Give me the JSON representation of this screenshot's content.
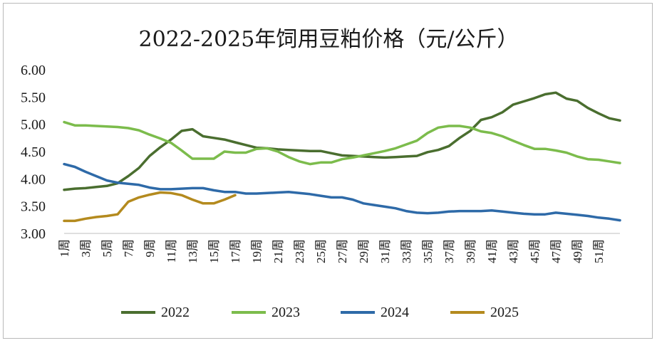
{
  "chart_data": {
    "type": "line",
    "title": "2022-2025年饲用豆粕价格（元/公斤）",
    "ylim": [
      3.0,
      6.0
    ],
    "yticks": [
      "6.00",
      "5.50",
      "5.00",
      "4.50",
      "4.00",
      "3.50",
      "3.00"
    ],
    "x_labels": [
      "1周",
      "3周",
      "5周",
      "7周",
      "9周",
      "11周",
      "13周",
      "15周",
      "17周",
      "19周",
      "21周",
      "23周",
      "25周",
      "27周",
      "29周",
      "31周",
      "33周",
      "35周",
      "37周",
      "39周",
      "41周",
      "43周",
      "45周",
      "47周",
      "49周",
      "51周"
    ],
    "legend_position": "bottom",
    "grid": false,
    "series": [
      {
        "name": "2022",
        "color": "#4a6e2f",
        "values": [
          3.8,
          3.82,
          3.83,
          3.85,
          3.87,
          3.92,
          4.05,
          4.2,
          4.42,
          4.58,
          4.72,
          4.88,
          4.91,
          4.78,
          4.75,
          4.72,
          4.67,
          4.62,
          4.57,
          4.56,
          4.54,
          4.53,
          4.52,
          4.51,
          4.51,
          4.47,
          4.43,
          4.42,
          4.41,
          4.4,
          4.39,
          4.4,
          4.41,
          4.42,
          4.49,
          4.53,
          4.6,
          4.75,
          4.88,
          5.08,
          5.13,
          5.22,
          5.36,
          5.42,
          5.48,
          5.55,
          5.58,
          5.47,
          5.43,
          5.3,
          5.2,
          5.11,
          5.07
        ]
      },
      {
        "name": "2023",
        "color": "#7cbc4c",
        "values": [
          5.04,
          4.98,
          4.98,
          4.97,
          4.96,
          4.95,
          4.93,
          4.89,
          4.81,
          4.74,
          4.66,
          4.52,
          4.37,
          4.37,
          4.37,
          4.5,
          4.48,
          4.48,
          4.55,
          4.56,
          4.5,
          4.4,
          4.32,
          4.27,
          4.3,
          4.3,
          4.36,
          4.39,
          4.43,
          4.47,
          4.51,
          4.56,
          4.63,
          4.7,
          4.84,
          4.94,
          4.97,
          4.97,
          4.94,
          4.87,
          4.84,
          4.78,
          4.7,
          4.62,
          4.55,
          4.55,
          4.52,
          4.48,
          4.41,
          4.36,
          4.35,
          4.32,
          4.29
        ]
      },
      {
        "name": "2024",
        "color": "#2e6aa8",
        "values": [
          4.27,
          4.22,
          4.13,
          4.05,
          3.97,
          3.93,
          3.91,
          3.89,
          3.84,
          3.81,
          3.81,
          3.82,
          3.83,
          3.83,
          3.79,
          3.76,
          3.76,
          3.73,
          3.73,
          3.74,
          3.75,
          3.76,
          3.74,
          3.72,
          3.69,
          3.66,
          3.66,
          3.62,
          3.55,
          3.52,
          3.49,
          3.46,
          3.41,
          3.38,
          3.37,
          3.38,
          3.4,
          3.41,
          3.41,
          3.41,
          3.42,
          3.4,
          3.38,
          3.36,
          3.35,
          3.35,
          3.38,
          3.36,
          3.34,
          3.32,
          3.29,
          3.27,
          3.24
        ]
      },
      {
        "name": "2025",
        "color": "#b48a1e",
        "values": [
          3.23,
          3.23,
          3.27,
          3.3,
          3.32,
          3.35,
          3.58,
          3.66,
          3.71,
          3.75,
          3.74,
          3.7,
          3.62,
          3.55,
          3.55,
          3.62,
          3.7
        ]
      }
    ]
  }
}
